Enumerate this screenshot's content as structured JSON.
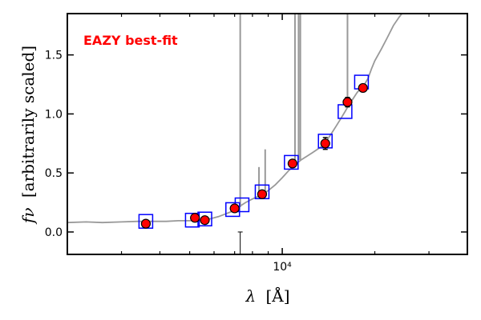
{
  "chart_data": {
    "type": "scatter",
    "annotation": "EAZY best-fit",
    "annotation_color": "#ff0000",
    "xlabel_symbol": "λ",
    "xlabel_unit": "[Å]",
    "ylabel_symbol": "fν",
    "ylabel_text": "[arbitrarily scaled]",
    "x_scale": "log",
    "xlim": [
      2000,
      40000
    ],
    "ylim": [
      -0.19,
      1.85
    ],
    "xticks": [
      {
        "value": 10000,
        "label": "10⁴"
      }
    ],
    "yticks": [
      {
        "value": 0.0,
        "label": "0.0"
      },
      {
        "value": 0.5,
        "label": "0.5"
      },
      {
        "value": 1.0,
        "label": "1.0"
      },
      {
        "value": 1.5,
        "label": "1.5"
      }
    ],
    "grid": false,
    "colors": {
      "observed": "#ff0000",
      "observed_edge": "#000000",
      "model_box": "#0000ff",
      "model_spectrum": "#999999"
    },
    "observed_points": [
      {
        "x": 3600,
        "y": 0.07,
        "err": 0.02
      },
      {
        "x": 5200,
        "y": 0.12,
        "err": 0.02
      },
      {
        "x": 5600,
        "y": 0.1,
        "err": 0.02
      },
      {
        "x": 7000,
        "y": 0.2,
        "err": 0.02
      },
      {
        "x": 8600,
        "y": 0.32,
        "err": 0.03
      },
      {
        "x": 10800,
        "y": 0.58,
        "err": 0.03
      },
      {
        "x": 13800,
        "y": 0.75,
        "err": 0.05
      },
      {
        "x": 16300,
        "y": 1.1,
        "err": 0.04
      },
      {
        "x": 18300,
        "y": 1.22,
        "err": 0.03
      }
    ],
    "model_photometry": [
      {
        "x": 3600,
        "y": 0.09
      },
      {
        "x": 5100,
        "y": 0.1
      },
      {
        "x": 5600,
        "y": 0.11
      },
      {
        "x": 6900,
        "y": 0.19
      },
      {
        "x": 7400,
        "y": 0.23
      },
      {
        "x": 8600,
        "y": 0.34
      },
      {
        "x": 10700,
        "y": 0.59
      },
      {
        "x": 13800,
        "y": 0.77
      },
      {
        "x": 16000,
        "y": 1.02
      },
      {
        "x": 18100,
        "y": 1.27
      }
    ],
    "model_spectrum": [
      [
        2000,
        0.08
      ],
      [
        2300,
        0.085
      ],
      [
        2600,
        0.08
      ],
      [
        3000,
        0.085
      ],
      [
        3400,
        0.09
      ],
      [
        3800,
        0.09
      ],
      [
        4200,
        0.09
      ],
      [
        4600,
        0.095
      ],
      [
        5000,
        0.095
      ],
      [
        5400,
        0.1
      ],
      [
        5800,
        0.11
      ],
      [
        6200,
        0.13
      ],
      [
        6500,
        0.15
      ],
      [
        6800,
        0.17
      ],
      [
        7200,
        0.21
      ],
      [
        7600,
        0.25
      ],
      [
        8000,
        0.28
      ],
      [
        8500,
        0.31
      ],
      [
        9000,
        0.35
      ],
      [
        9500,
        0.4
      ],
      [
        10000,
        0.46
      ],
      [
        10500,
        0.52
      ],
      [
        11000,
        0.57
      ],
      [
        11500,
        0.61
      ],
      [
        12000,
        0.64
      ],
      [
        12500,
        0.67
      ],
      [
        13000,
        0.7
      ],
      [
        13500,
        0.73
      ],
      [
        14000,
        0.78
      ],
      [
        14500,
        0.84
      ],
      [
        15000,
        0.9
      ],
      [
        15500,
        0.96
      ],
      [
        16000,
        1.02
      ],
      [
        16500,
        1.08
      ],
      [
        17000,
        1.13
      ],
      [
        17500,
        1.18
      ],
      [
        18000,
        1.22
      ],
      [
        18500,
        1.25
      ],
      [
        19000,
        1.3
      ],
      [
        19500,
        1.38
      ],
      [
        20000,
        1.45
      ],
      [
        21000,
        1.55
      ],
      [
        22000,
        1.65
      ],
      [
        23000,
        1.75
      ],
      [
        24000,
        1.82
      ],
      [
        25000,
        1.88
      ]
    ],
    "emission_lines": [
      {
        "x": 7300,
        "y": 1.85
      },
      {
        "x": 8400,
        "y": 0.55
      },
      {
        "x": 8800,
        "y": 0.7
      },
      {
        "x": 11000,
        "y": 1.85
      },
      {
        "x": 11300,
        "y": 1.85
      },
      {
        "x": 11450,
        "y": 1.85
      },
      {
        "x": 16300,
        "y": 1.85
      }
    ],
    "upper_limit": {
      "x": 7300,
      "y_top": 0.0,
      "y_bottom": -0.19
    }
  }
}
